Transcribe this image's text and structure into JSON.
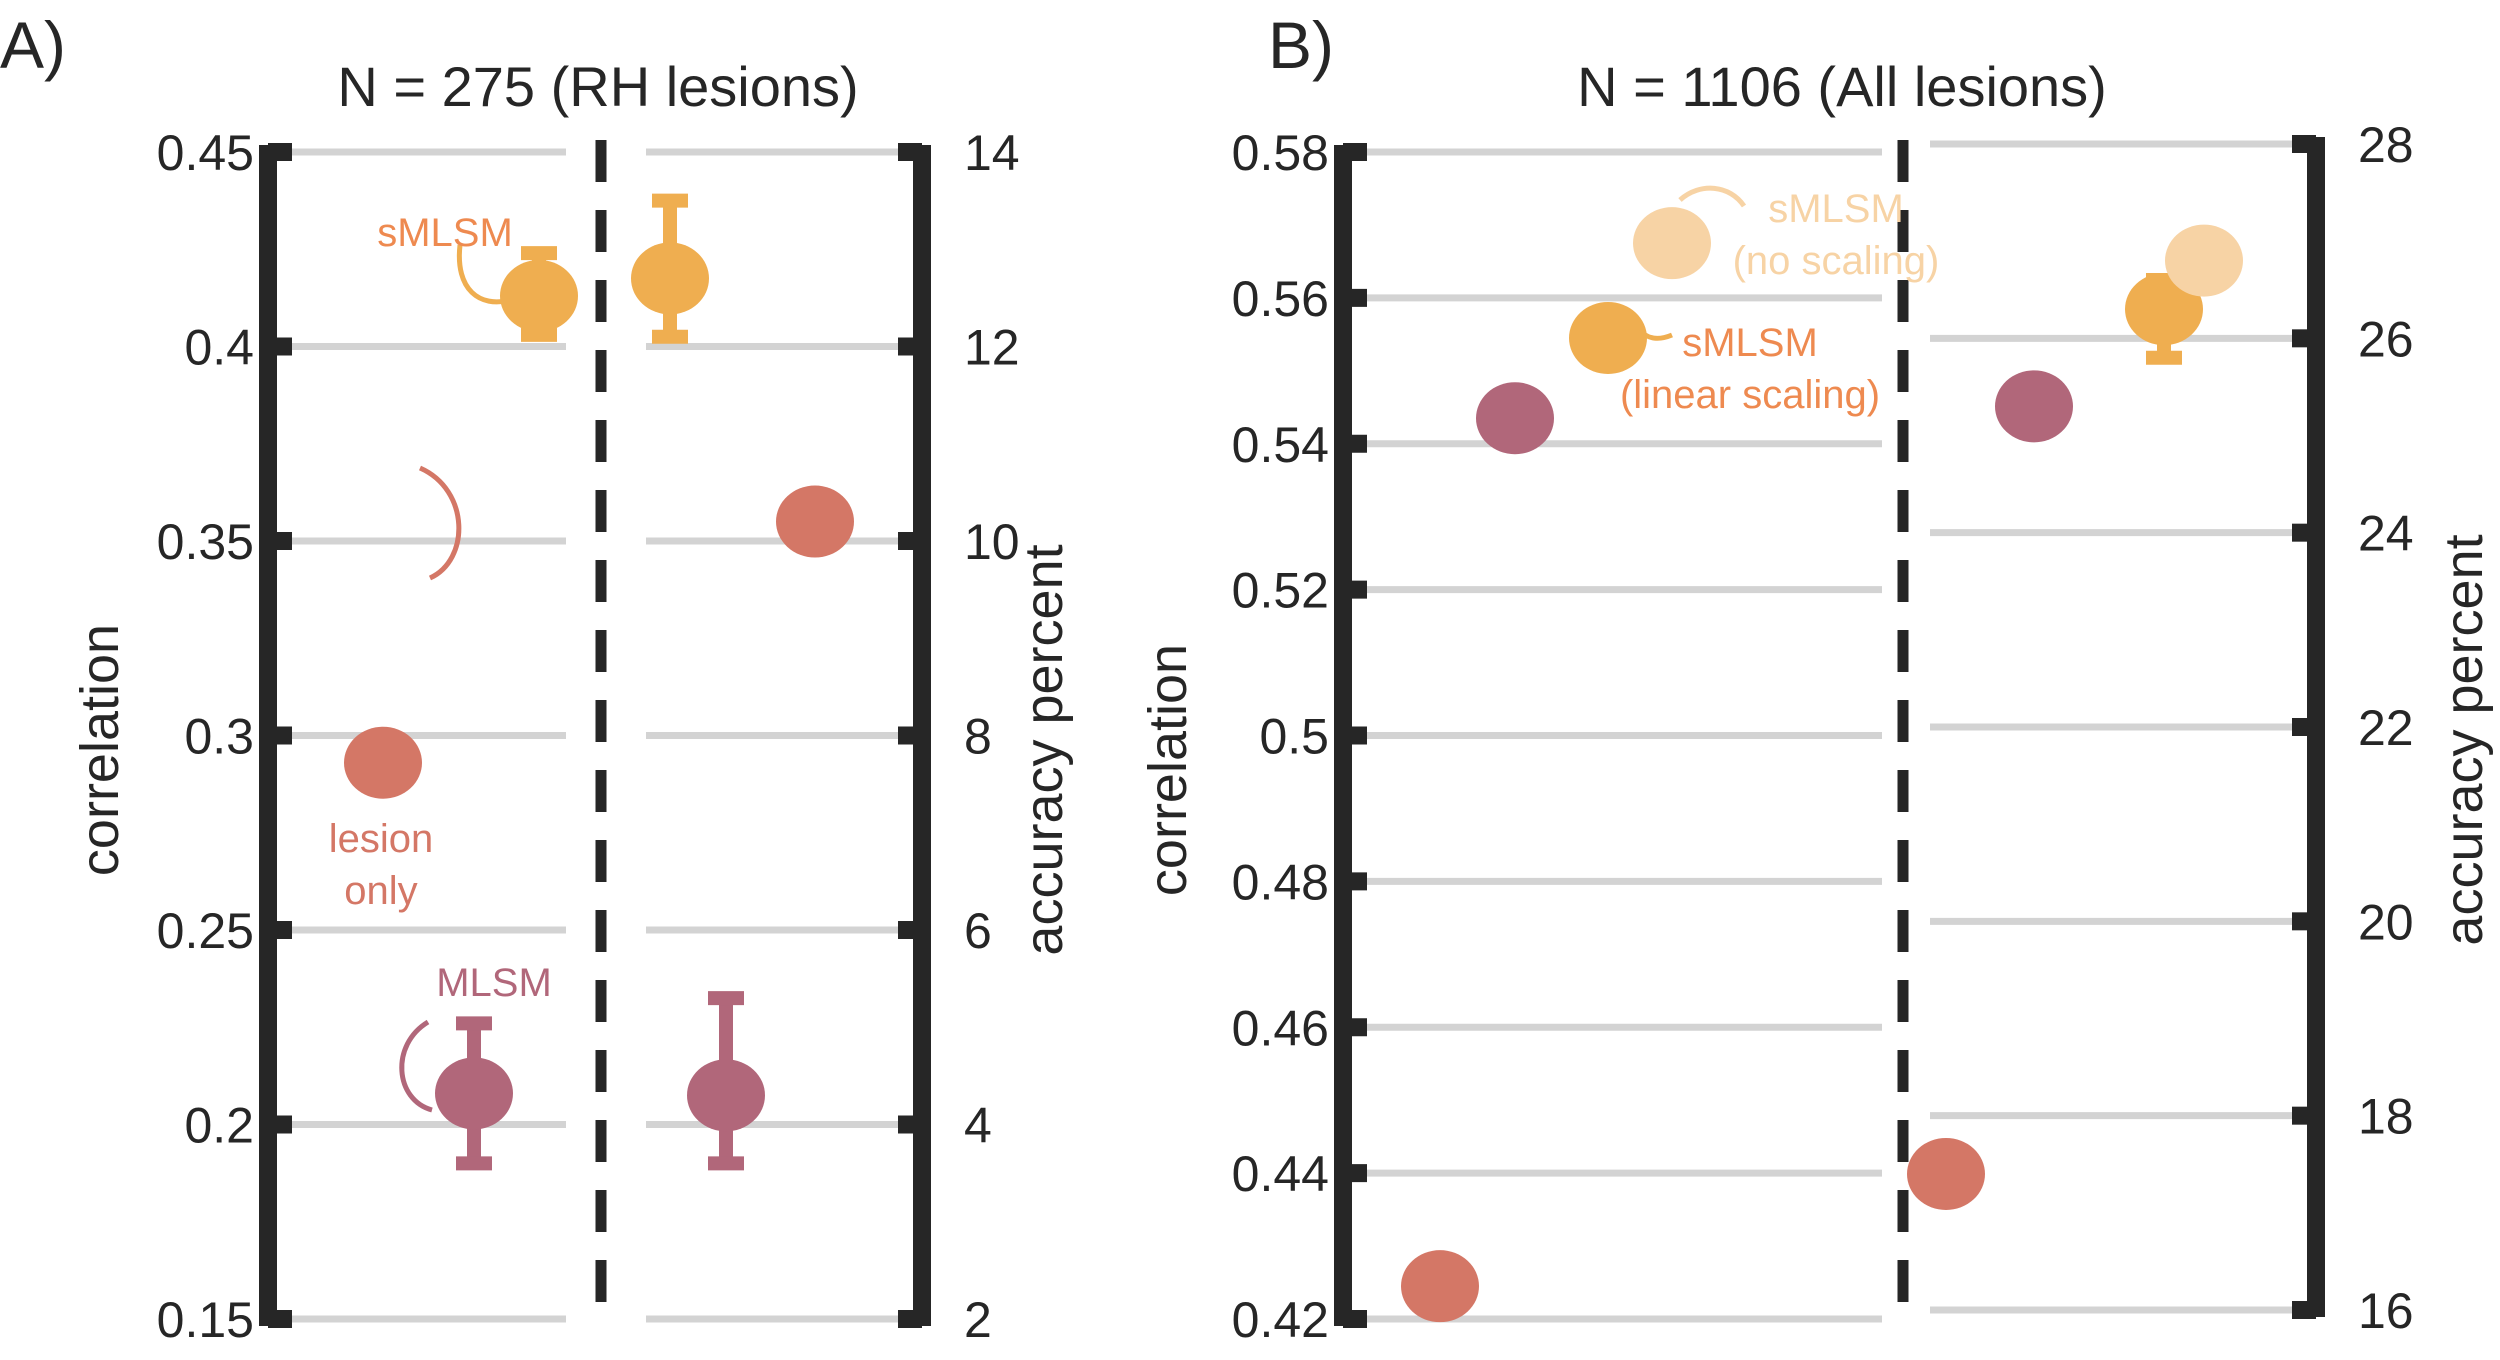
{
  "colors": {
    "smlsm": "#EFAE50",
    "smlsm_label": "#EE8A50",
    "smlsm_no_scaling": "#F7D3A5",
    "lesion_only": "#D47766",
    "mlsm": "#B1677A",
    "axis": "#262626",
    "grid": "#D3D3D3"
  },
  "chart_data": [
    {
      "type": "scatter",
      "panel_label": "A)",
      "title": "N = 275 (RH lesions)",
      "grid": true,
      "left": {
        "ylabel": "correlation",
        "ylim": [
          0.15,
          0.45
        ],
        "ticks": [
          "0.15",
          "0.2",
          "0.25",
          "0.3",
          "0.35",
          "0.4",
          "0.45"
        ],
        "points": [
          {
            "series": "sMLSM",
            "y": 0.413,
            "err": [
              0.403,
              0.424
            ]
          },
          {
            "series": "lesion only",
            "y": 0.293
          },
          {
            "series": "MLSM",
            "y": 0.208,
            "err": [
              0.19,
              0.226
            ]
          }
        ]
      },
      "right": {
        "ylabel": "accuracy percent",
        "ylim": [
          2,
          14
        ],
        "ticks": [
          "2",
          "4",
          "6",
          "8",
          "10",
          "12",
          "14"
        ],
        "points": [
          {
            "series": "sMLSM",
            "y": 12.7,
            "err": [
              12.1,
              13.5
            ]
          },
          {
            "series": "lesion only",
            "y": 10.2
          },
          {
            "series": "MLSM",
            "y": 4.3,
            "err": [
              3.6,
              5.3
            ]
          }
        ]
      },
      "annotations": [
        {
          "series": "sMLSM",
          "lines": [
            "sMLSM"
          ]
        },
        {
          "series": "lesion only",
          "lines": [
            "lesion",
            "only"
          ]
        },
        {
          "series": "MLSM",
          "lines": [
            "MLSM"
          ]
        }
      ]
    },
    {
      "type": "scatter",
      "panel_label": "B)",
      "title": "N = 1106 (All lesions)",
      "grid": true,
      "left": {
        "ylabel": "correlation",
        "ylim": [
          0.42,
          0.58
        ],
        "ticks": [
          "0.42",
          "0.44",
          "0.46",
          "0.48",
          "0.5",
          "0.52",
          "0.54",
          "0.56",
          "0.58"
        ],
        "points": [
          {
            "series": "MLSM",
            "y": 0.5435
          },
          {
            "series": "sMLSM (linear scaling)",
            "y": 0.5545
          },
          {
            "series": "sMLSM (no scaling)",
            "y": 0.5675
          },
          {
            "series": "lesion only",
            "y": 0.4245
          }
        ]
      },
      "right": {
        "ylabel": "accuracy percent",
        "ylim": [
          16,
          28
        ],
        "ticks": [
          "16",
          "18",
          "20",
          "22",
          "24",
          "26",
          "28"
        ],
        "points": [
          {
            "series": "MLSM",
            "y": 25.3,
            "err": [
              25.1,
              25.5
            ]
          },
          {
            "series": "sMLSM (linear scaling)",
            "y": 26.3,
            "err": [
              25.8,
              26.6
            ]
          },
          {
            "series": "sMLSM (no scaling)",
            "y": 26.8
          },
          {
            "series": "lesion only",
            "y": 17.4
          }
        ]
      },
      "annotations": [
        {
          "series": "sMLSM (no scaling)",
          "lines": [
            "sMLSM",
            "(no scaling)"
          ]
        },
        {
          "series": "sMLSM (linear scaling)",
          "lines": [
            "sMLSM",
            "(linear scaling)"
          ]
        }
      ]
    }
  ]
}
